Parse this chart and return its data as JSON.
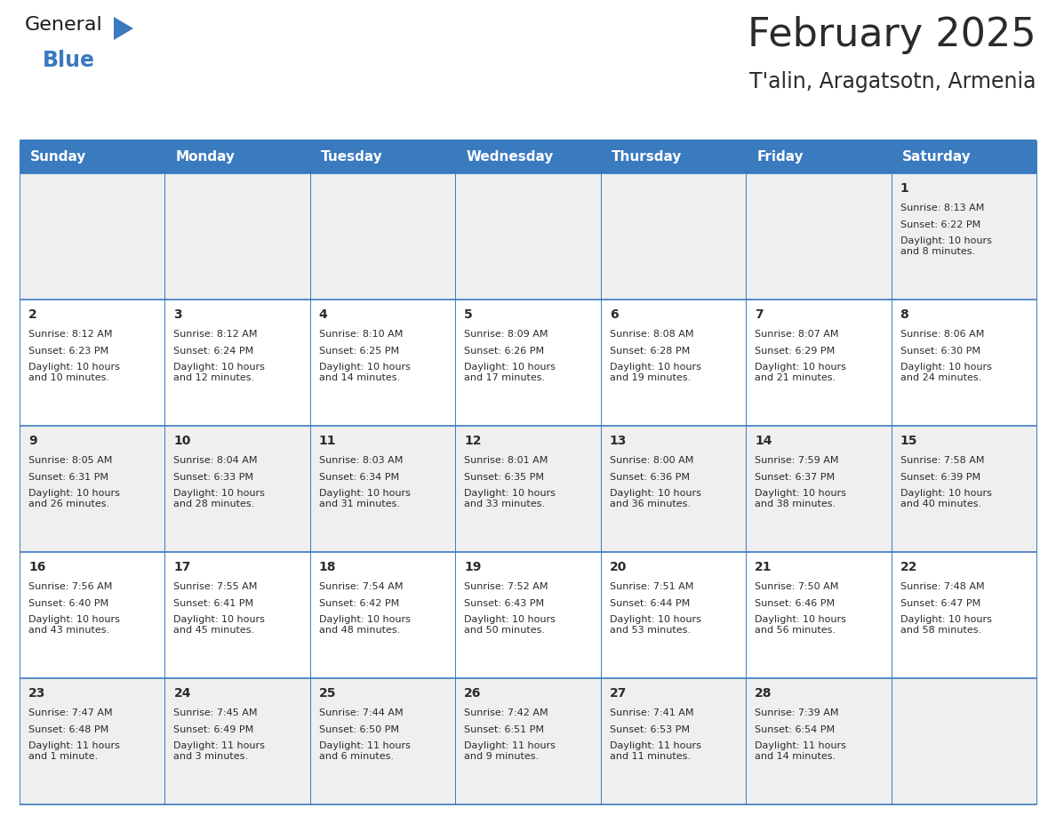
{
  "title": "February 2025",
  "subtitle": "T'alin, Aragatsotn, Armenia",
  "header_color": "#3a7abf",
  "header_text_color": "#ffffff",
  "row_bg_colors": [
    "#efefef",
    "#ffffff",
    "#efefef",
    "#ffffff",
    "#efefef"
  ],
  "day_names": [
    "Sunday",
    "Monday",
    "Tuesday",
    "Wednesday",
    "Thursday",
    "Friday",
    "Saturday"
  ],
  "days": [
    {
      "day": 1,
      "col": 6,
      "row": 0,
      "sunrise": "8:13 AM",
      "sunset": "6:22 PM",
      "daylight": "10 hours\nand 8 minutes."
    },
    {
      "day": 2,
      "col": 0,
      "row": 1,
      "sunrise": "8:12 AM",
      "sunset": "6:23 PM",
      "daylight": "10 hours\nand 10 minutes."
    },
    {
      "day": 3,
      "col": 1,
      "row": 1,
      "sunrise": "8:12 AM",
      "sunset": "6:24 PM",
      "daylight": "10 hours\nand 12 minutes."
    },
    {
      "day": 4,
      "col": 2,
      "row": 1,
      "sunrise": "8:10 AM",
      "sunset": "6:25 PM",
      "daylight": "10 hours\nand 14 minutes."
    },
    {
      "day": 5,
      "col": 3,
      "row": 1,
      "sunrise": "8:09 AM",
      "sunset": "6:26 PM",
      "daylight": "10 hours\nand 17 minutes."
    },
    {
      "day": 6,
      "col": 4,
      "row": 1,
      "sunrise": "8:08 AM",
      "sunset": "6:28 PM",
      "daylight": "10 hours\nand 19 minutes."
    },
    {
      "day": 7,
      "col": 5,
      "row": 1,
      "sunrise": "8:07 AM",
      "sunset": "6:29 PM",
      "daylight": "10 hours\nand 21 minutes."
    },
    {
      "day": 8,
      "col": 6,
      "row": 1,
      "sunrise": "8:06 AM",
      "sunset": "6:30 PM",
      "daylight": "10 hours\nand 24 minutes."
    },
    {
      "day": 9,
      "col": 0,
      "row": 2,
      "sunrise": "8:05 AM",
      "sunset": "6:31 PM",
      "daylight": "10 hours\nand 26 minutes."
    },
    {
      "day": 10,
      "col": 1,
      "row": 2,
      "sunrise": "8:04 AM",
      "sunset": "6:33 PM",
      "daylight": "10 hours\nand 28 minutes."
    },
    {
      "day": 11,
      "col": 2,
      "row": 2,
      "sunrise": "8:03 AM",
      "sunset": "6:34 PM",
      "daylight": "10 hours\nand 31 minutes."
    },
    {
      "day": 12,
      "col": 3,
      "row": 2,
      "sunrise": "8:01 AM",
      "sunset": "6:35 PM",
      "daylight": "10 hours\nand 33 minutes."
    },
    {
      "day": 13,
      "col": 4,
      "row": 2,
      "sunrise": "8:00 AM",
      "sunset": "6:36 PM",
      "daylight": "10 hours\nand 36 minutes."
    },
    {
      "day": 14,
      "col": 5,
      "row": 2,
      "sunrise": "7:59 AM",
      "sunset": "6:37 PM",
      "daylight": "10 hours\nand 38 minutes."
    },
    {
      "day": 15,
      "col": 6,
      "row": 2,
      "sunrise": "7:58 AM",
      "sunset": "6:39 PM",
      "daylight": "10 hours\nand 40 minutes."
    },
    {
      "day": 16,
      "col": 0,
      "row": 3,
      "sunrise": "7:56 AM",
      "sunset": "6:40 PM",
      "daylight": "10 hours\nand 43 minutes."
    },
    {
      "day": 17,
      "col": 1,
      "row": 3,
      "sunrise": "7:55 AM",
      "sunset": "6:41 PM",
      "daylight": "10 hours\nand 45 minutes."
    },
    {
      "day": 18,
      "col": 2,
      "row": 3,
      "sunrise": "7:54 AM",
      "sunset": "6:42 PM",
      "daylight": "10 hours\nand 48 minutes."
    },
    {
      "day": 19,
      "col": 3,
      "row": 3,
      "sunrise": "7:52 AM",
      "sunset": "6:43 PM",
      "daylight": "10 hours\nand 50 minutes."
    },
    {
      "day": 20,
      "col": 4,
      "row": 3,
      "sunrise": "7:51 AM",
      "sunset": "6:44 PM",
      "daylight": "10 hours\nand 53 minutes."
    },
    {
      "day": 21,
      "col": 5,
      "row": 3,
      "sunrise": "7:50 AM",
      "sunset": "6:46 PM",
      "daylight": "10 hours\nand 56 minutes."
    },
    {
      "day": 22,
      "col": 6,
      "row": 3,
      "sunrise": "7:48 AM",
      "sunset": "6:47 PM",
      "daylight": "10 hours\nand 58 minutes."
    },
    {
      "day": 23,
      "col": 0,
      "row": 4,
      "sunrise": "7:47 AM",
      "sunset": "6:48 PM",
      "daylight": "11 hours\nand 1 minute."
    },
    {
      "day": 24,
      "col": 1,
      "row": 4,
      "sunrise": "7:45 AM",
      "sunset": "6:49 PM",
      "daylight": "11 hours\nand 3 minutes."
    },
    {
      "day": 25,
      "col": 2,
      "row": 4,
      "sunrise": "7:44 AM",
      "sunset": "6:50 PM",
      "daylight": "11 hours\nand 6 minutes."
    },
    {
      "day": 26,
      "col": 3,
      "row": 4,
      "sunrise": "7:42 AM",
      "sunset": "6:51 PM",
      "daylight": "11 hours\nand 9 minutes."
    },
    {
      "day": 27,
      "col": 4,
      "row": 4,
      "sunrise": "7:41 AM",
      "sunset": "6:53 PM",
      "daylight": "11 hours\nand 11 minutes."
    },
    {
      "day": 28,
      "col": 5,
      "row": 4,
      "sunrise": "7:39 AM",
      "sunset": "6:54 PM",
      "daylight": "11 hours\nand 14 minutes."
    }
  ],
  "num_rows": 5,
  "num_cols": 7,
  "logo_triangle_color": "#3a7abf",
  "text_color_dark": "#2b2b2b",
  "line_color": "#3a7abf",
  "font_family": "DejaVu Sans",
  "header_fontsize": 11,
  "day_num_fontsize": 10,
  "cell_text_fontsize": 8,
  "title_fontsize": 32,
  "subtitle_fontsize": 17,
  "logo_general_fontsize": 16,
  "logo_blue_fontsize": 17
}
